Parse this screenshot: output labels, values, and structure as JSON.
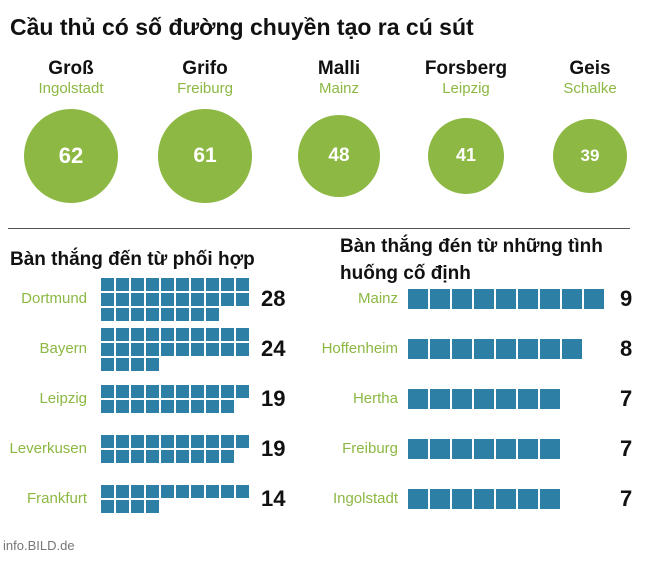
{
  "title": "Cầu thủ có số đường chuyền tạo ra cú sút",
  "players": [
    {
      "name": "Groß",
      "club": "Ingolstadt",
      "value": "62"
    },
    {
      "name": "Grifo",
      "club": "Freiburg",
      "value": "61"
    },
    {
      "name": "Malli",
      "club": "Mainz",
      "value": "48"
    },
    {
      "name": "Forsberg",
      "club": "Leipzig",
      "value": "41"
    },
    {
      "name": "Geis",
      "club": "Schalke",
      "value": "39"
    }
  ],
  "left_section": {
    "title": "Bàn thắng đến từ phối hợp",
    "rows": [
      {
        "team": "Dortmund",
        "value": 28,
        "label": "28"
      },
      {
        "team": "Bayern",
        "value": 24,
        "label": "24"
      },
      {
        "team": "Leipzig",
        "value": 19,
        "label": "19"
      },
      {
        "team": "Leverkusen",
        "value": 19,
        "label": "19"
      },
      {
        "team": "Frankfurt",
        "value": 14,
        "label": "14"
      }
    ]
  },
  "right_section": {
    "title": "Bàn thắng đén từ những tình huống cố định",
    "rows": [
      {
        "team": "Mainz",
        "value": 9,
        "label": "9"
      },
      {
        "team": "Hoffenheim",
        "value": 8,
        "label": "8"
      },
      {
        "team": "Hertha",
        "value": 7,
        "label": "7"
      },
      {
        "team": "Freiburg",
        "value": 7,
        "label": "7"
      },
      {
        "team": "Ingolstadt",
        "value": 7,
        "label": "7"
      }
    ]
  },
  "source": "info.BILD.de",
  "colors": {
    "green": "#8cb843",
    "blue": "#2e7fa6",
    "text": "#111111"
  },
  "chart_data": [
    {
      "type": "bar",
      "title": "Cầu thủ có số đường chuyền tạo ra cú sút",
      "categories": [
        "Groß (Ingolstadt)",
        "Grifo (Freiburg)",
        "Malli (Mainz)",
        "Forsberg (Leipzig)",
        "Geis (Schalke)"
      ],
      "values": [
        62,
        61,
        48,
        41,
        39
      ]
    },
    {
      "type": "bar",
      "title": "Bàn thắng đến từ phối hợp",
      "categories": [
        "Dortmund",
        "Bayern",
        "Leipzig",
        "Leverkusen",
        "Frankfurt"
      ],
      "values": [
        28,
        24,
        19,
        19,
        14
      ]
    },
    {
      "type": "bar",
      "title": "Bàn thắng đén từ những tình huống cố định",
      "categories": [
        "Mainz",
        "Hoffenheim",
        "Hertha",
        "Freiburg",
        "Ingolstadt"
      ],
      "values": [
        9,
        8,
        7,
        7,
        7
      ]
    }
  ]
}
